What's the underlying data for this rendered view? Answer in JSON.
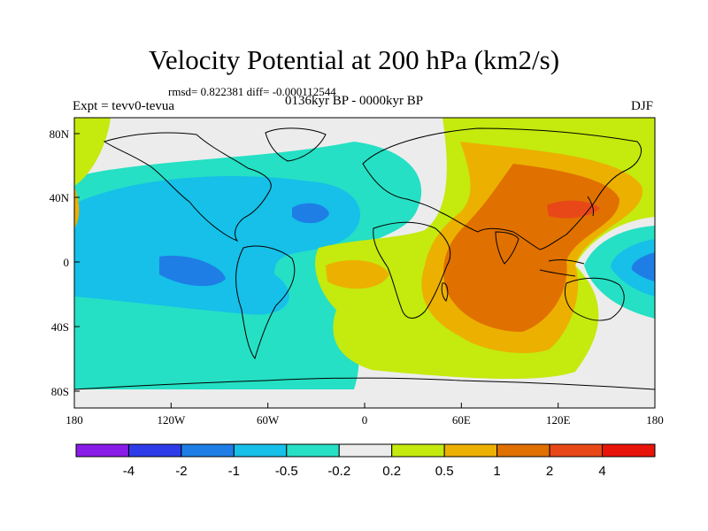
{
  "title": "Velocity Potential at 200 hPa (km2/s)",
  "stats": "rmsd= 0.822381 diff= -0.000112544",
  "expt": "Expt = tevv0-tevua",
  "period": "0136kyr BP - 0000kyr BP",
  "season": "DJF",
  "map": {
    "lon_range": [
      -180,
      180
    ],
    "lat_range": [
      -90,
      90
    ],
    "x_tick_labels": [
      "180",
      "120W",
      "60W",
      "0",
      "60E",
      "120E",
      "180"
    ],
    "y_tick_labels": [
      "80N",
      "40N",
      "0",
      "40S",
      "80S"
    ]
  },
  "colorbar": {
    "labels": [
      "-4",
      "-2",
      "-1",
      "-0.5",
      "-0.2",
      "0.2",
      "0.5",
      "1",
      "2",
      "4"
    ],
    "colors": [
      "#8a1ce8",
      "#2d3ce8",
      "#1e7ee6",
      "#16c0e8",
      "#25e0c4",
      "#ececec",
      "#c4ea0e",
      "#ecb000",
      "#e07000",
      "#e84818",
      "#e8140a"
    ]
  },
  "fields": {
    "neutral": "#ececec",
    "neg_02": "#25e0c4",
    "neg_05": "#16c0e8",
    "neg_1": "#1e7ee6",
    "pos_02": "#c4ea0e",
    "pos_05": "#ecb000",
    "pos_1": "#e07000",
    "pos_2": "#e84818"
  }
}
